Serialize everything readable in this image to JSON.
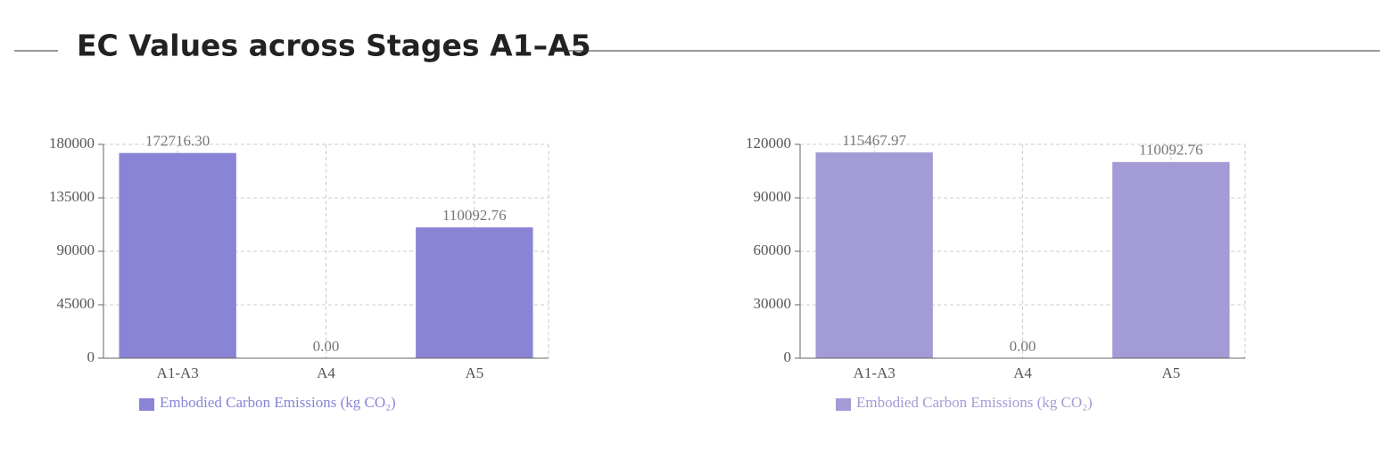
{
  "heading": "EC Values across Stages A1–A5",
  "chart_data": [
    {
      "type": "bar",
      "categories": [
        "A1-A3",
        "A4",
        "A5"
      ],
      "series": [
        {
          "name": "Embodied Carbon Emissions (kg CO₂)",
          "color": "#8a84d6",
          "values": [
            172716.3,
            0,
            110092.76
          ],
          "value_labels": [
            "172716.30",
            "0.00",
            "110092.76"
          ]
        }
      ],
      "ylim": [
        0,
        180000
      ],
      "yticks": [
        0,
        45000,
        90000,
        135000,
        180000
      ],
      "grid": true
    },
    {
      "type": "bar",
      "categories": [
        "A1-A3",
        "A4",
        "A5"
      ],
      "series": [
        {
          "name": "Embodied Carbon Emissions (kg CO₂)",
          "color": "#a39bd6",
          "values": [
            115467.97,
            0,
            110092.76
          ],
          "value_labels": [
            "115467.97",
            "0.00",
            "110092.76"
          ]
        }
      ],
      "ylim": [
        0,
        120000
      ],
      "yticks": [
        0,
        30000,
        60000,
        90000,
        120000
      ],
      "grid": true
    }
  ]
}
